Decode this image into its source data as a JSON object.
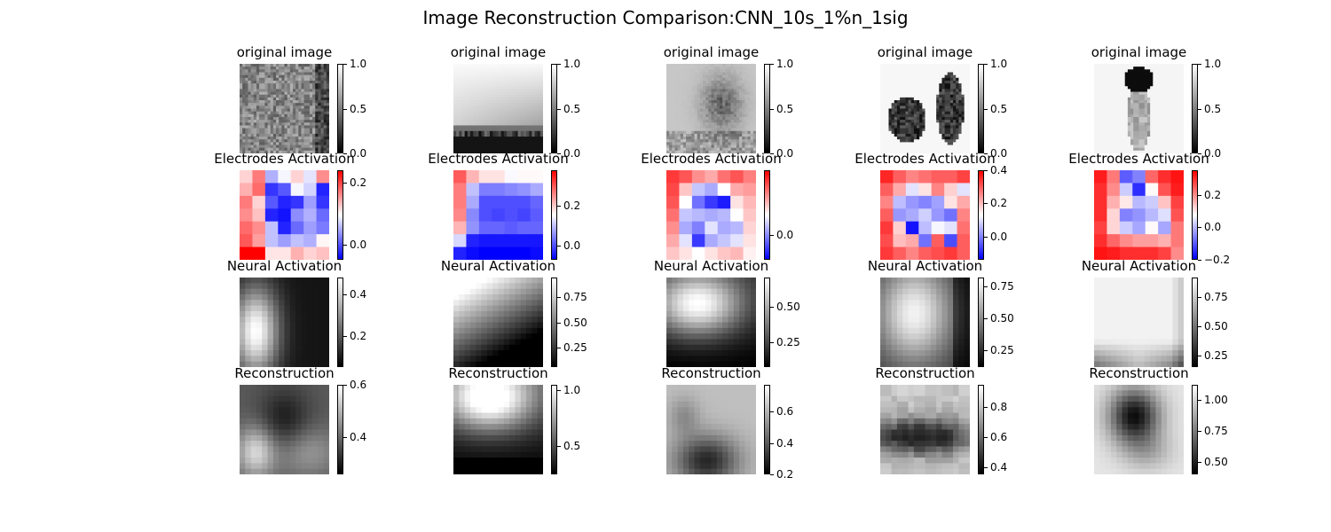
{
  "figure": {
    "title": "Image Reconstruction Comparison:CNN_10s_1%n_1sig"
  },
  "chart_data": {
    "type": "heatmap",
    "rows": [
      {
        "row_title": "original image",
        "colormap": "gray",
        "panels": [
          {
            "title": "original image",
            "vmin": 0.0,
            "vmax": 1.0,
            "ticks": [
              0.0,
              0.5,
              1.0
            ],
            "tick_labels": [
              "0.0",
              "0.5",
              "1.0"
            ],
            "pattern": "texture"
          },
          {
            "title": "original image",
            "vmin": 0.0,
            "vmax": 1.0,
            "ticks": [
              0.0,
              0.5,
              1.0
            ],
            "tick_labels": [
              "0.0",
              "0.5",
              "1.0"
            ],
            "pattern": "sky"
          },
          {
            "title": "original image",
            "vmin": 0.0,
            "vmax": 1.0,
            "ticks": [
              0.0,
              0.5,
              1.0
            ],
            "tick_labels": [
              "0.0",
              "0.5",
              "1.0"
            ],
            "pattern": "lion"
          },
          {
            "title": "original image",
            "vmin": 0.0,
            "vmax": 1.0,
            "ticks": [
              0.0,
              0.5,
              1.0
            ],
            "tick_labels": [
              "0.0",
              "0.5",
              "1.0"
            ],
            "pattern": "animals"
          },
          {
            "title": "original image",
            "vmin": 0.0,
            "vmax": 1.0,
            "ticks": [
              0.0,
              0.5,
              1.0
            ],
            "tick_labels": [
              "0.0",
              "0.5",
              "1.0"
            ],
            "pattern": "flower"
          }
        ]
      },
      {
        "row_title": "Electrodes Activation",
        "colormap": "bwr",
        "panels": [
          {
            "title": "Electrodes Activation",
            "vmin": -0.05,
            "vmax": 0.24,
            "ticks": [
              0.0,
              0.2
            ],
            "tick_labels": [
              "0.0",
              "0.2"
            ],
            "grid": [
              [
                0.12,
                0.17,
                0.05,
                0.09,
                0.12,
                0.08,
                0.16
              ],
              [
                0.14,
                0.18,
                -0.02,
                0.0,
                0.09,
                0.07,
                -0.03
              ],
              [
                0.17,
                0.12,
                0.0,
                -0.03,
                -0.02,
                0.04,
                -0.02
              ],
              [
                0.16,
                0.13,
                -0.03,
                -0.04,
                0.03,
                0.05,
                0.01
              ],
              [
                0.18,
                0.16,
                0.06,
                -0.03,
                0.01,
                0.04,
                0.02
              ],
              [
                0.19,
                0.15,
                0.06,
                0.04,
                0.06,
                0.05,
                0.1
              ],
              [
                0.24,
                0.24,
                0.11,
                0.11,
                0.14,
                0.12,
                0.13
              ]
            ]
          },
          {
            "title": "Electrodes Activation",
            "vmin": -0.07,
            "vmax": 0.38,
            "ticks": [
              0.0,
              0.2
            ],
            "tick_labels": [
              "0.0",
              "0.2"
            ],
            "grid": [
              [
                0.3,
                0.22,
                0.18,
                0.18,
                0.15,
                0.16,
                0.16
              ],
              [
                0.27,
                0.1,
                0.04,
                0.04,
                0.05,
                0.06,
                0.08
              ],
              [
                0.27,
                0.08,
                -0.0,
                -0.0,
                0.0,
                0.0,
                0.02
              ],
              [
                0.26,
                0.05,
                0.0,
                -0.01,
                0.0,
                -0.01,
                0.01
              ],
              [
                0.22,
                0.06,
                0.02,
                0.02,
                0.01,
                0.02,
                0.02
              ],
              [
                0.12,
                -0.04,
                -0.05,
                -0.05,
                -0.05,
                -0.05,
                -0.05
              ],
              [
                -0.04,
                -0.06,
                -0.07,
                -0.07,
                -0.07,
                -0.07,
                -0.06
              ]
            ]
          },
          {
            "title": "Electrodes Activation",
            "vmin": -0.1,
            "vmax": 0.26,
            "ticks": [
              0.0
            ],
            "tick_labels": [
              "0.0"
            ],
            "grid": [
              [
                0.22,
                0.2,
                0.16,
                0.14,
                0.18,
                0.2,
                0.17
              ],
              [
                0.21,
                0.12,
                0.04,
                0.02,
                0.08,
                0.14,
                0.15
              ],
              [
                0.2,
                0.08,
                -0.02,
                -0.06,
                -0.08,
                0.1,
                0.13
              ],
              [
                0.18,
                0.04,
                0.03,
                0.02,
                0.03,
                0.08,
                0.12
              ],
              [
                0.16,
                0.02,
                -0.01,
                0.06,
                0.02,
                0.03,
                0.11
              ],
              [
                0.14,
                0.06,
                -0.06,
                0.02,
                0.04,
                0.06,
                0.1
              ],
              [
                0.12,
                0.1,
                0.08,
                0.1,
                0.12,
                0.13,
                0.09
              ]
            ]
          },
          {
            "title": "Electrodes Activation",
            "vmin": -0.14,
            "vmax": 0.4,
            "ticks": [
              0.0,
              0.2,
              0.4
            ],
            "tick_labels": [
              "0.0",
              "0.2",
              "0.4"
            ],
            "grid": [
              [
                0.36,
                0.3,
                0.26,
                0.28,
                0.3,
                0.3,
                0.33
              ],
              [
                0.3,
                0.22,
                0.1,
                0.16,
                0.26,
                0.18,
                0.1
              ],
              [
                0.26,
                0.06,
                0.02,
                0.0,
                0.03,
                0.16,
                0.22
              ],
              [
                0.3,
                0.02,
                0.04,
                0.08,
                0.02,
                -0.02,
                0.26
              ],
              [
                0.34,
                0.18,
                -0.12,
                0.06,
                0.12,
                0.1,
                0.28
              ],
              [
                0.32,
                0.2,
                0.22,
                -0.02,
                0.3,
                -0.06,
                0.3
              ],
              [
                0.34,
                0.3,
                0.26,
                0.3,
                0.32,
                0.34,
                0.3
              ]
            ]
          },
          {
            "title": "Electrodes Activation",
            "vmin": -0.2,
            "vmax": 0.35,
            "ticks": [
              -0.2,
              0.0,
              0.2
            ],
            "tick_labels": [
              "−0.2",
              "0.0",
              "0.2"
            ],
            "grid": [
              [
                0.32,
                0.22,
                -0.1,
                -0.06,
                0.24,
                0.3,
                0.33
              ],
              [
                0.3,
                0.2,
                0.02,
                -0.15,
                0.08,
                0.26,
                0.32
              ],
              [
                0.3,
                0.16,
                0.1,
                0.0,
                0.02,
                0.14,
                0.28
              ],
              [
                0.3,
                0.12,
                -0.06,
                -0.04,
                0.0,
                0.04,
                0.26
              ],
              [
                0.28,
                0.12,
                0.02,
                -0.02,
                0.08,
                -0.02,
                0.22
              ],
              [
                0.3,
                0.24,
                0.2,
                0.18,
                0.18,
                0.16,
                0.22
              ],
              [
                0.33,
                0.32,
                0.3,
                0.3,
                0.3,
                0.28,
                0.2
              ]
            ]
          }
        ]
      },
      {
        "row_title": "Neural Activation",
        "colormap": "gray",
        "panels": [
          {
            "title": "Neural Activation",
            "vmin": 0.05,
            "vmax": 0.48,
            "ticks": [
              0.2,
              0.4
            ],
            "tick_labels": [
              "0.2",
              "0.4"
            ],
            "pattern": "left-blob"
          },
          {
            "title": "Neural Activation",
            "vmin": 0.05,
            "vmax": 0.95,
            "ticks": [
              0.25,
              0.5,
              0.75
            ],
            "tick_labels": [
              "0.25",
              "0.50",
              "0.75"
            ],
            "pattern": "top-left-bright"
          },
          {
            "title": "Neural Activation",
            "vmin": 0.08,
            "vmax": 0.7,
            "ticks": [
              0.25,
              0.5
            ],
            "tick_labels": [
              "0.25",
              "0.50"
            ],
            "pattern": "top-band"
          },
          {
            "title": "Neural Activation",
            "vmin": 0.12,
            "vmax": 0.82,
            "ticks": [
              0.25,
              0.5,
              0.75
            ],
            "tick_labels": [
              "0.25",
              "0.50",
              "0.75"
            ],
            "pattern": "center-soft"
          },
          {
            "title": "Neural Activation",
            "vmin": 0.15,
            "vmax": 0.92,
            "ticks": [
              0.25,
              0.5,
              0.75
            ],
            "tick_labels": [
              "0.25",
              "0.50",
              "0.75"
            ],
            "pattern": "broad-bright"
          }
        ]
      },
      {
        "row_title": "Reconstruction",
        "colormap": "gray",
        "panels": [
          {
            "title": "Reconstruction",
            "vmin": 0.26,
            "vmax": 0.6,
            "ticks": [
              0.4,
              0.6
            ],
            "tick_labels": [
              "0.4",
              "0.6"
            ],
            "pattern": "recon-1"
          },
          {
            "title": "Reconstruction",
            "vmin": 0.25,
            "vmax": 1.05,
            "ticks": [
              0.5,
              1.0
            ],
            "tick_labels": [
              "0.5",
              "1.0"
            ],
            "pattern": "recon-2"
          },
          {
            "title": "Reconstruction",
            "vmin": 0.2,
            "vmax": 0.77,
            "ticks": [
              0.2,
              0.4,
              0.6
            ],
            "tick_labels": [
              "0.2",
              "0.4",
              "0.6"
            ],
            "pattern": "recon-3"
          },
          {
            "title": "Reconstruction",
            "vmin": 0.35,
            "vmax": 0.95,
            "ticks": [
              0.4,
              0.6,
              0.8
            ],
            "tick_labels": [
              "0.4",
              "0.6",
              "0.8"
            ],
            "pattern": "recon-4"
          },
          {
            "title": "Reconstruction",
            "vmin": 0.4,
            "vmax": 1.12,
            "ticks": [
              0.5,
              0.75,
              1.0
            ],
            "tick_labels": [
              "0.50",
              "0.75",
              "1.00"
            ],
            "pattern": "recon-5"
          }
        ]
      }
    ]
  }
}
